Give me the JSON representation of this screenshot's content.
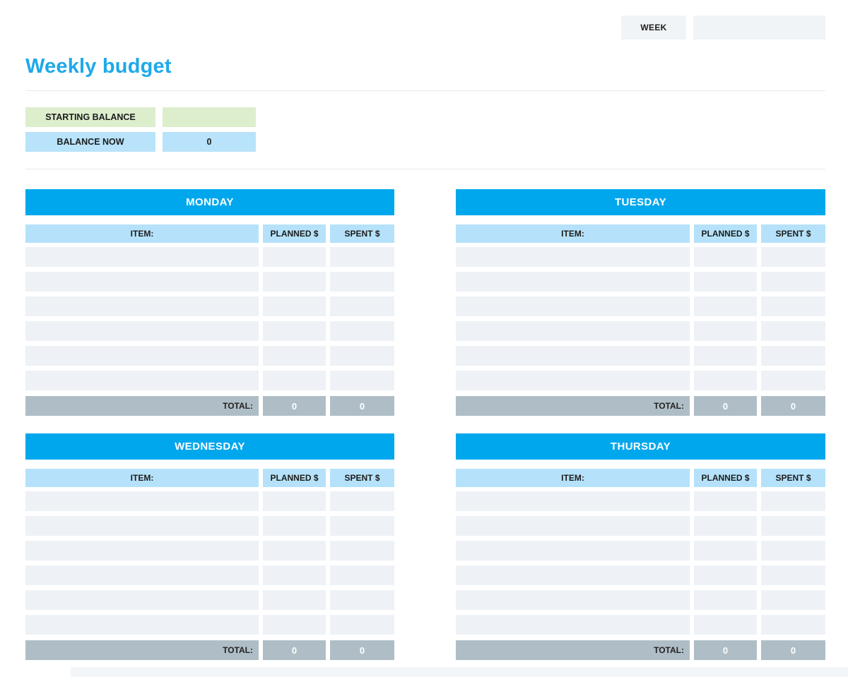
{
  "header": {
    "week_label": "WEEK",
    "week_value": "",
    "title": "Weekly budget"
  },
  "balance": {
    "starting_label": "STARTING BALANCE",
    "starting_value": "",
    "now_label": "BALANCE NOW",
    "now_value": "0"
  },
  "table_headers": {
    "item": "ITEM:",
    "planned": "PLANNED $",
    "spent": "SPENT $",
    "total_label": "TOTAL:"
  },
  "days": [
    {
      "name": "MONDAY",
      "empty_rows": 6,
      "total_planned": "0",
      "total_spent": "0"
    },
    {
      "name": "TUESDAY",
      "empty_rows": 6,
      "total_planned": "0",
      "total_spent": "0"
    },
    {
      "name": "WEDNESDAY",
      "empty_rows": 6,
      "total_planned": "0",
      "total_spent": "0"
    },
    {
      "name": "THURSDAY",
      "empty_rows": 6,
      "total_planned": "0",
      "total_spent": "0"
    }
  ],
  "colors": {
    "accent_blue": "#01a7ed",
    "title_blue": "#1ea9e9",
    "light_blue_cell": "#b5e2fa",
    "balance_blue": "#b8e3fa",
    "balance_green": "#ddeecd",
    "empty_row_gray": "#eef2f6",
    "total_gray": "#afbec6",
    "week_box_gray": "#f0f4f7"
  }
}
